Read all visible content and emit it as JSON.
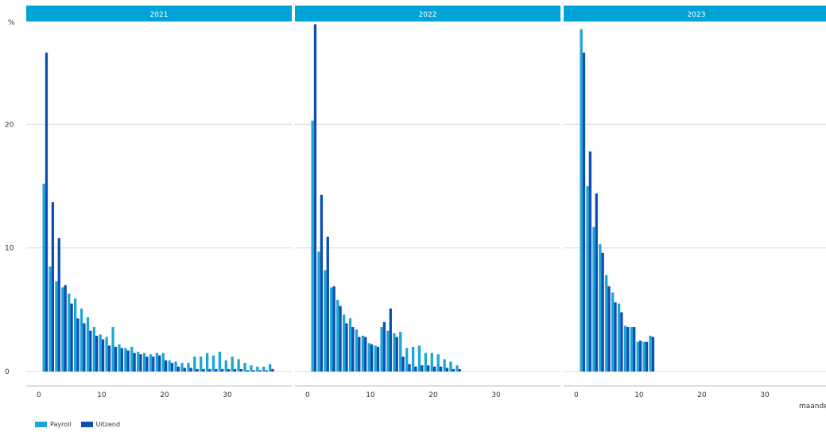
{
  "colors": {
    "payroll": "#1ba6d6",
    "uitzend": "#0d4fb2",
    "panel_header": "#00a3d6",
    "grid": "#d9d9d9"
  },
  "chart_data": {
    "type": "bar",
    "y_unit_label": "%",
    "x_axis_label": "maanden",
    "ylim": [
      0,
      28
    ],
    "y_ticks": [
      0,
      10,
      20
    ],
    "x_ticks": [
      0,
      10,
      20,
      30
    ],
    "xlim": [
      -1,
      40
    ],
    "grid": true,
    "legend_position": "bottom-left",
    "series_names": [
      "Payroll",
      "Uitzend"
    ],
    "panels": [
      {
        "title": "2021",
        "x": [
          1,
          2,
          3,
          4,
          5,
          6,
          7,
          8,
          9,
          10,
          11,
          12,
          13,
          14,
          15,
          16,
          17,
          18,
          19,
          20,
          21,
          22,
          23,
          24,
          25,
          26,
          27,
          28,
          29,
          30,
          31,
          32,
          33,
          34,
          35,
          36,
          37
        ],
        "payroll": [
          15.2,
          8.5,
          7.3,
          6.8,
          6.3,
          5.9,
          5.1,
          4.4,
          3.6,
          3.0,
          2.8,
          3.6,
          2.2,
          1.9,
          2.0,
          1.6,
          1.5,
          1.4,
          1.5,
          1.5,
          0.9,
          0.8,
          0.7,
          0.7,
          1.2,
          1.2,
          1.5,
          1.3,
          1.6,
          0.9,
          1.2,
          1.0,
          0.7,
          0.5,
          0.4,
          0.4,
          0.6
        ],
        "uitzend": [
          25.8,
          13.7,
          10.8,
          7.0,
          5.5,
          4.3,
          3.9,
          3.3,
          2.9,
          2.6,
          2.1,
          2.0,
          1.9,
          1.7,
          1.5,
          1.4,
          1.2,
          1.2,
          1.3,
          0.9,
          0.7,
          0.4,
          0.3,
          0.3,
          0.2,
          0.2,
          0.2,
          0.2,
          0.2,
          0.2,
          0.2,
          0.2,
          0.1,
          0.1,
          0.1,
          0.1,
          0.2
        ]
      },
      {
        "title": "2022",
        "x": [
          1,
          2,
          3,
          4,
          5,
          6,
          7,
          8,
          9,
          10,
          11,
          12,
          13,
          14,
          15,
          16,
          17,
          18,
          19,
          20,
          21,
          22,
          23,
          24,
          25
        ],
        "payroll": [
          20.3,
          9.7,
          8.2,
          6.8,
          5.8,
          4.6,
          4.3,
          3.4,
          2.9,
          2.3,
          2.1,
          3.6,
          3.3,
          3.1,
          3.2,
          1.9,
          2.0,
          2.1,
          1.5,
          1.5,
          1.4,
          1.0,
          0.8,
          0.5,
          0.0
        ],
        "uitzend": [
          28.1,
          14.3,
          10.9,
          6.9,
          5.3,
          3.9,
          3.6,
          2.8,
          2.8,
          2.2,
          2.0,
          4.0,
          5.1,
          2.8,
          1.2,
          0.6,
          0.4,
          0.5,
          0.5,
          0.4,
          0.4,
          0.3,
          0.2,
          0.2,
          0.0
        ]
      },
      {
        "title": "2023",
        "x": [
          1,
          2,
          3,
          4,
          5,
          6,
          7,
          8,
          9,
          10,
          11,
          12
        ],
        "payroll": [
          27.7,
          15.0,
          11.7,
          10.3,
          7.8,
          6.4,
          5.5,
          3.7,
          3.6,
          2.4,
          2.4,
          2.9
        ],
        "uitzend": [
          25.8,
          17.8,
          14.4,
          9.6,
          6.9,
          5.6,
          4.8,
          3.6,
          3.6,
          2.5,
          2.4,
          2.8
        ]
      }
    ]
  }
}
